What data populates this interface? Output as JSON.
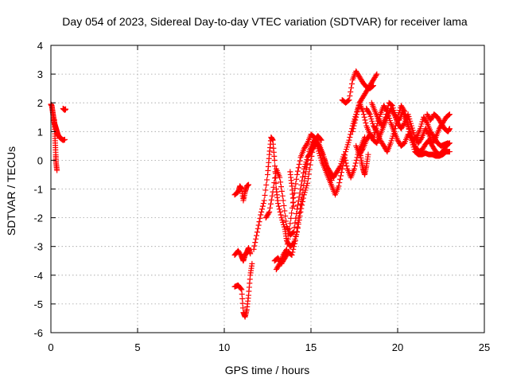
{
  "chart_data": {
    "type": "scatter",
    "title": "Day 054 of 2023, Sidereal Day-to-day VTEC variation (SDTVAR) for receiver lama",
    "xlabel": "GPS time / hours",
    "ylabel": "SDTVAR / TECUs",
    "xlim": [
      0,
      25
    ],
    "ylim": [
      -6,
      4
    ],
    "xticks": [
      "0",
      "5",
      "10",
      "15",
      "20",
      "25"
    ],
    "yticks": [
      "-6",
      "-5",
      "-4",
      "-3",
      "-2",
      "-1",
      "0",
      "1",
      "2",
      "3",
      "4"
    ],
    "grid": true,
    "marker": "plus",
    "color": "#ff0000",
    "series": [
      {
        "name": "",
        "segments": [
          [
            [
              0.0,
              1.95
            ],
            [
              0.05,
              1.9
            ],
            [
              0.1,
              1.7
            ],
            [
              0.15,
              1.5
            ],
            [
              0.2,
              1.3
            ],
            [
              0.25,
              1.2
            ],
            [
              0.3,
              1.1
            ],
            [
              0.35,
              1.0
            ],
            [
              0.4,
              0.9
            ],
            [
              0.5,
              0.8
            ],
            [
              0.6,
              0.75
            ],
            [
              0.7,
              0.7
            ],
            [
              0.8,
              0.72
            ]
          ],
          [
            [
              0.2,
              1.4
            ],
            [
              0.22,
              1.0
            ],
            [
              0.25,
              0.6
            ],
            [
              0.28,
              0.2
            ],
            [
              0.3,
              -0.1
            ],
            [
              0.35,
              -0.35
            ]
          ],
          [
            [
              0.7,
              1.8
            ],
            [
              0.8,
              1.75
            ],
            [
              0.85,
              1.78
            ]
          ],
          [
            [
              10.6,
              -1.2
            ],
            [
              10.8,
              -1.1
            ],
            [
              10.9,
              -0.9
            ],
            [
              11.0,
              -1.0
            ],
            [
              11.1,
              -1.4
            ],
            [
              11.2,
              -1.1
            ],
            [
              11.3,
              -0.9
            ],
            [
              11.4,
              -0.85
            ]
          ],
          [
            [
              10.6,
              -3.3
            ],
            [
              10.8,
              -3.15
            ],
            [
              11.0,
              -3.35
            ],
            [
              11.1,
              -3.5
            ],
            [
              11.2,
              -3.3
            ],
            [
              11.3,
              -3.2
            ],
            [
              11.4,
              -3.05
            ],
            [
              11.5,
              -3.25
            ]
          ],
          [
            [
              10.6,
              -4.4
            ],
            [
              10.8,
              -4.35
            ],
            [
              11.0,
              -4.5
            ],
            [
              11.1,
              -5.3
            ],
            [
              11.2,
              -5.45
            ],
            [
              11.3,
              -5.2
            ],
            [
              11.4,
              -4.7
            ],
            [
              11.5,
              -4.0
            ],
            [
              11.6,
              -3.6
            ]
          ],
          [
            [
              11.7,
              -3.1
            ],
            [
              11.9,
              -2.5
            ],
            [
              12.1,
              -1.9
            ],
            [
              12.3,
              -1.4
            ],
            [
              12.5,
              -0.5
            ],
            [
              12.6,
              0.2
            ],
            [
              12.7,
              0.8
            ],
            [
              12.8,
              0.7
            ],
            [
              12.9,
              0.0
            ],
            [
              13.0,
              -1.0
            ],
            [
              13.1,
              -1.5
            ],
            [
              13.3,
              -2.0
            ],
            [
              13.5,
              -2.4
            ],
            [
              13.6,
              -2.8
            ],
            [
              13.8,
              -3.0
            ],
            [
              14.0,
              -2.9
            ],
            [
              14.2,
              -2.5
            ],
            [
              14.4,
              -1.8
            ],
            [
              14.6,
              -1.2
            ],
            [
              14.8,
              -0.8
            ],
            [
              15.0,
              0.0
            ],
            [
              15.2,
              0.7
            ],
            [
              15.4,
              0.85
            ],
            [
              15.6,
              0.7
            ]
          ],
          [
            [
              12.4,
              -2.0
            ],
            [
              12.6,
              -1.8
            ],
            [
              12.8,
              -1.1
            ],
            [
              13.0,
              -0.3
            ],
            [
              13.2,
              -0.6
            ],
            [
              13.4,
              -1.4
            ],
            [
              13.6,
              -2.3
            ],
            [
              13.8,
              -2.6
            ],
            [
              14.0,
              -2.5
            ],
            [
              14.2,
              -1.7
            ],
            [
              14.4,
              -1.0
            ],
            [
              14.6,
              -0.3
            ],
            [
              14.8,
              0.1
            ],
            [
              15.0,
              0.3
            ],
            [
              15.2,
              0.5
            ],
            [
              15.4,
              0.6
            ],
            [
              15.6,
              0.3
            ],
            [
              15.8,
              0.0
            ],
            [
              16.0,
              -0.4
            ],
            [
              16.2,
              -0.7
            ]
          ],
          [
            [
              12.9,
              -3.5
            ],
            [
              13.1,
              -3.4
            ],
            [
              13.3,
              -3.6
            ],
            [
              13.5,
              -3.4
            ],
            [
              13.7,
              -3.2
            ],
            [
              13.9,
              -3.3
            ],
            [
              14.1,
              -2.8
            ],
            [
              14.3,
              -2.0
            ],
            [
              14.5,
              -1.2
            ],
            [
              14.7,
              -0.4
            ],
            [
              14.9,
              0.3
            ],
            [
              15.1,
              0.6
            ],
            [
              15.3,
              0.75
            ],
            [
              15.5,
              0.5
            ],
            [
              15.7,
              0.2
            ],
            [
              15.9,
              -0.2
            ],
            [
              16.1,
              -0.4
            ],
            [
              16.3,
              -0.6
            ],
            [
              16.5,
              -0.4
            ],
            [
              16.7,
              -0.2
            ],
            [
              16.9,
              0.2
            ],
            [
              17.1,
              -0.3
            ],
            [
              17.3,
              -0.6
            ],
            [
              17.5,
              -0.3
            ],
            [
              17.7,
              0.2
            ],
            [
              17.9,
              0.5
            ],
            [
              18.1,
              0.8
            ]
          ],
          [
            [
              13.0,
              -3.8
            ],
            [
              13.2,
              -3.6
            ],
            [
              13.4,
              -3.3
            ],
            [
              13.6,
              -3.1
            ],
            [
              13.8,
              -2.2
            ],
            [
              14.0,
              -1.3
            ],
            [
              14.2,
              -0.5
            ],
            [
              14.4,
              0.1
            ],
            [
              14.6,
              0.4
            ],
            [
              14.8,
              0.6
            ],
            [
              15.0,
              0.9
            ],
            [
              15.2,
              0.8
            ],
            [
              15.4,
              0.4
            ],
            [
              15.6,
              0.0
            ],
            [
              15.8,
              -0.3
            ],
            [
              16.0,
              -0.6
            ],
            [
              16.2,
              -0.9
            ],
            [
              16.4,
              -1.2
            ],
            [
              16.6,
              -0.9
            ],
            [
              16.8,
              -0.3
            ],
            [
              17.0,
              0.3
            ],
            [
              17.2,
              0.7
            ],
            [
              17.4,
              1.2
            ],
            [
              17.6,
              1.6
            ],
            [
              17.8,
              2.0
            ],
            [
              18.0,
              2.2
            ],
            [
              18.2,
              2.4
            ],
            [
              18.4,
              2.6
            ],
            [
              18.6,
              2.8
            ],
            [
              18.8,
              3.0
            ]
          ],
          [
            [
              13.8,
              -0.4
            ],
            [
              13.9,
              -0.9
            ],
            [
              14.0,
              -1.6
            ]
          ],
          [
            [
              16.8,
              2.1
            ],
            [
              17.0,
              2.0
            ],
            [
              17.2,
              2.1
            ],
            [
              17.4,
              2.8
            ],
            [
              17.6,
              3.1
            ],
            [
              17.8,
              2.9
            ],
            [
              18.0,
              2.7
            ],
            [
              18.2,
              2.55
            ],
            [
              18.4,
              2.5
            ],
            [
              18.6,
              2.6
            ]
          ],
          [
            [
              17.4,
              1.0
            ],
            [
              17.6,
              1.5
            ],
            [
              17.8,
              2.0
            ],
            [
              18.0,
              1.7
            ],
            [
              18.2,
              1.2
            ],
            [
              18.4,
              0.9
            ],
            [
              18.6,
              0.8
            ],
            [
              18.8,
              1.2
            ],
            [
              19.0,
              1.6
            ],
            [
              19.2,
              1.9
            ],
            [
              19.4,
              1.7
            ],
            [
              19.6,
              1.3
            ],
            [
              19.8,
              1.0
            ],
            [
              20.0,
              0.7
            ],
            [
              20.2,
              0.5
            ],
            [
              20.4,
              0.6
            ],
            [
              20.6,
              0.9
            ],
            [
              20.8,
              0.8
            ],
            [
              21.0,
              0.5
            ],
            [
              21.2,
              0.3
            ],
            [
              21.4,
              0.35
            ],
            [
              21.6,
              0.55
            ],
            [
              21.8,
              0.7
            ],
            [
              22.0,
              0.5
            ],
            [
              22.2,
              0.3
            ],
            [
              22.4,
              0.2
            ],
            [
              22.6,
              0.3
            ],
            [
              22.8,
              0.5
            ],
            [
              23.0,
              0.6
            ]
          ],
          [
            [
              17.6,
              0.5
            ],
            [
              17.8,
              0.2
            ],
            [
              18.0,
              0.4
            ],
            [
              18.2,
              0.7
            ],
            [
              18.4,
              0.9
            ],
            [
              18.6,
              0.7
            ],
            [
              18.8,
              0.6
            ],
            [
              19.0,
              0.9
            ],
            [
              19.2,
              1.2
            ],
            [
              19.4,
              1.5
            ],
            [
              19.6,
              1.8
            ],
            [
              19.8,
              1.6
            ],
            [
              20.0,
              1.3
            ],
            [
              20.2,
              1.1
            ],
            [
              20.4,
              1.3
            ],
            [
              20.6,
              1.6
            ],
            [
              20.8,
              1.2
            ],
            [
              21.0,
              0.8
            ],
            [
              21.2,
              0.6
            ],
            [
              21.4,
              0.8
            ],
            [
              21.6,
              1.1
            ],
            [
              21.8,
              0.9
            ],
            [
              22.0,
              0.6
            ],
            [
              22.2,
              0.8
            ],
            [
              22.4,
              1.1
            ],
            [
              22.6,
              1.3
            ],
            [
              22.8,
              1.5
            ],
            [
              23.0,
              1.6
            ]
          ],
          [
            [
              18.2,
              1.8
            ],
            [
              18.4,
              1.6
            ],
            [
              18.6,
              1.2
            ],
            [
              18.8,
              1.0
            ],
            [
              19.0,
              0.7
            ],
            [
              19.2,
              0.5
            ],
            [
              19.4,
              0.3
            ],
            [
              19.6,
              0.6
            ],
            [
              19.8,
              1.0
            ],
            [
              20.0,
              1.5
            ],
            [
              20.2,
              1.9
            ],
            [
              20.4,
              1.7
            ],
            [
              20.6,
              1.2
            ],
            [
              20.8,
              0.7
            ],
            [
              21.0,
              0.3
            ],
            [
              21.2,
              0.2
            ],
            [
              21.4,
              0.2
            ],
            [
              21.6,
              0.25
            ],
            [
              21.8,
              0.2
            ],
            [
              22.0,
              0.2
            ],
            [
              22.2,
              0.15
            ],
            [
              22.4,
              0.15
            ],
            [
              22.6,
              0.2
            ],
            [
              22.8,
              0.3
            ],
            [
              23.0,
              0.3
            ]
          ],
          [
            [
              17.8,
              0.4
            ],
            [
              17.9,
              0.0
            ],
            [
              18.0,
              -0.3
            ],
            [
              18.1,
              -0.5
            ],
            [
              18.2,
              -0.2
            ],
            [
              18.3,
              0.2
            ]
          ],
          [
            [
              18.5,
              2.0
            ],
            [
              18.7,
              1.7
            ],
            [
              18.9,
              1.4
            ],
            [
              19.1,
              1.2
            ],
            [
              19.3,
              1.5
            ],
            [
              19.5,
              2.0
            ],
            [
              19.7,
              1.9
            ],
            [
              19.9,
              1.5
            ],
            [
              20.1,
              1.4
            ],
            [
              20.3,
              1.7
            ],
            [
              20.5,
              1.4
            ],
            [
              20.7,
              1.0
            ],
            [
              20.9,
              0.7
            ],
            [
              21.1,
              0.8
            ],
            [
              21.3,
              1.1
            ],
            [
              21.5,
              1.5
            ],
            [
              21.7,
              1.3
            ],
            [
              21.9,
              1.0
            ],
            [
              22.1,
              0.8
            ],
            [
              22.3,
              0.6
            ],
            [
              22.5,
              0.5
            ],
            [
              22.7,
              0.55
            ],
            [
              22.9,
              0.6
            ]
          ],
          [
            [
              21.7,
              1.6
            ],
            [
              21.9,
              1.4
            ],
            [
              22.1,
              1.6
            ],
            [
              22.3,
              1.5
            ],
            [
              22.5,
              1.3
            ],
            [
              22.7,
              1.1
            ],
            [
              22.9,
              1.0
            ],
            [
              23.0,
              1.1
            ]
          ]
        ]
      }
    ]
  }
}
